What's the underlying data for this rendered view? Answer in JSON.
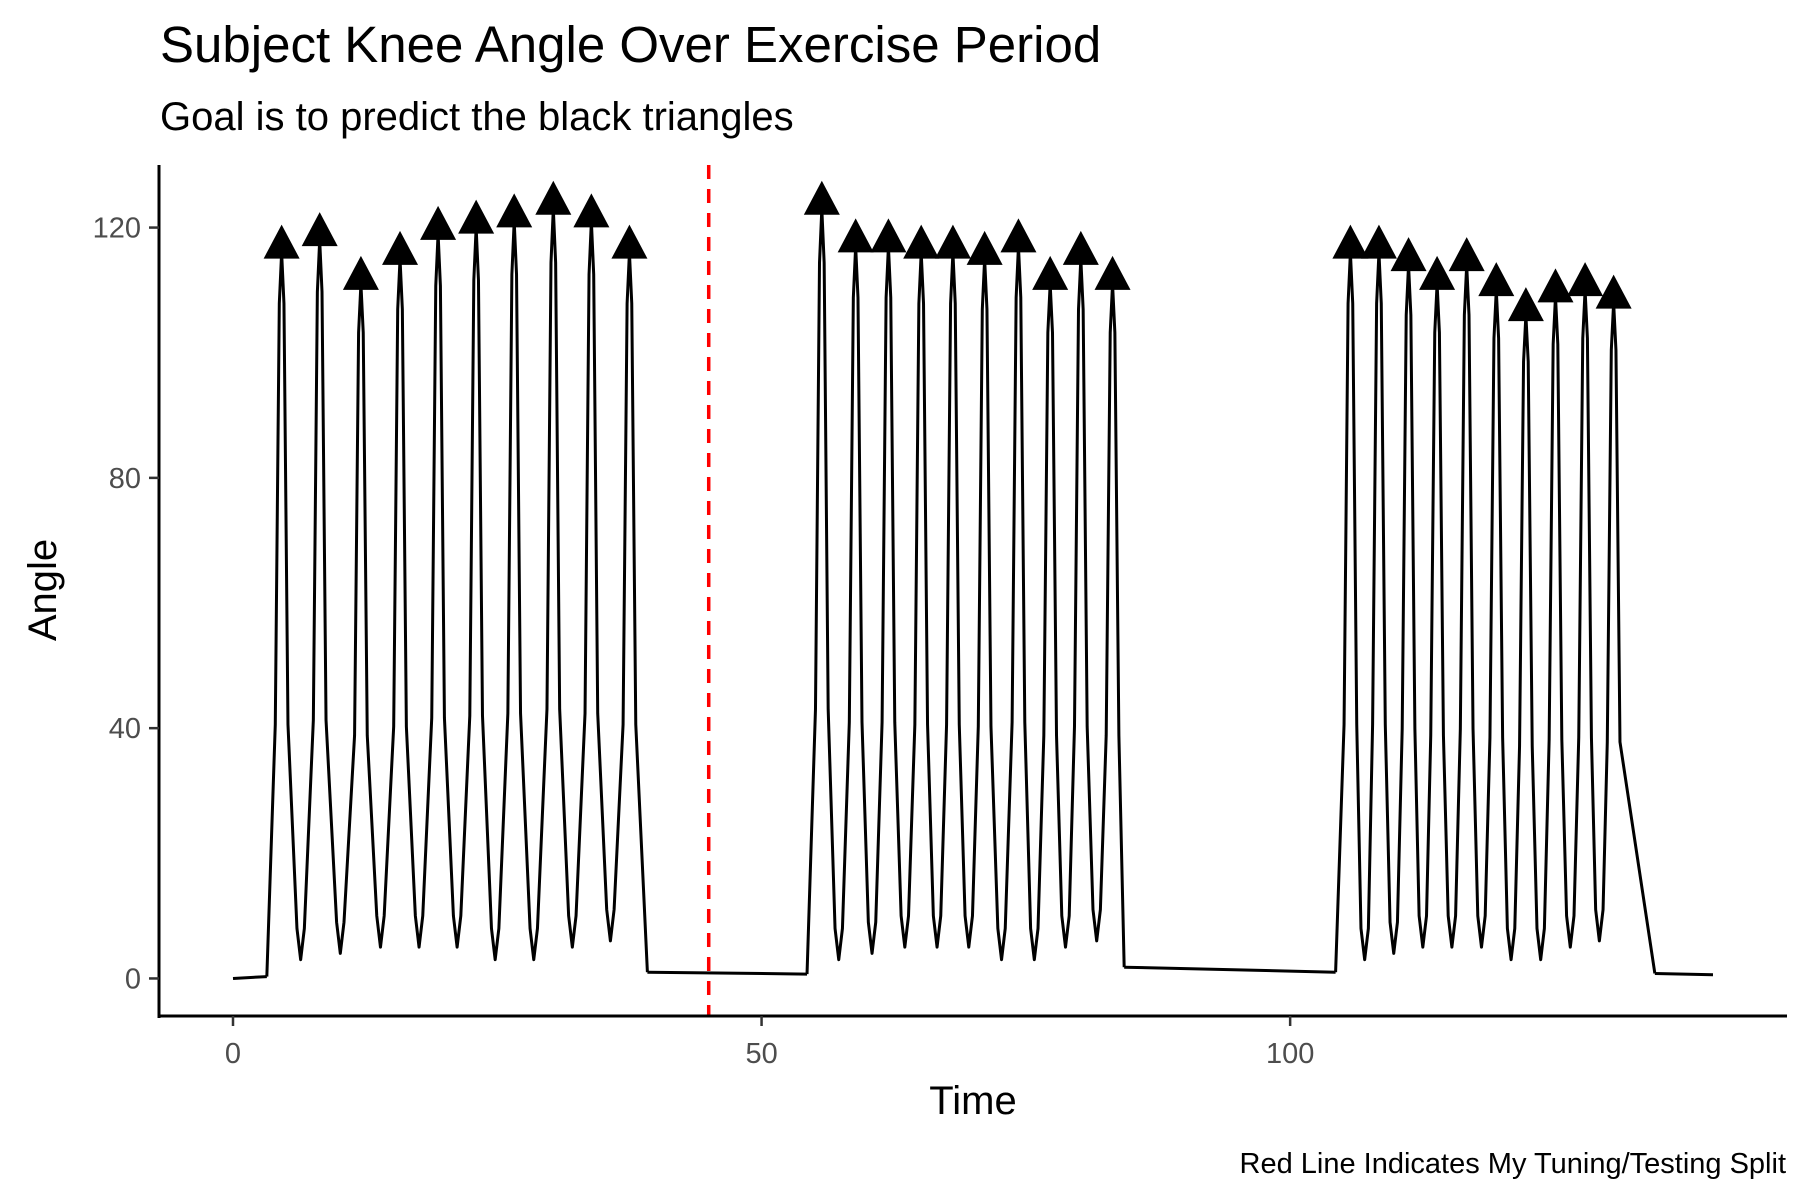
{
  "chart_data": {
    "type": "line",
    "title": "Subject Knee Angle Over Exercise Period",
    "subtitle": "Goal is to predict the black triangles",
    "xlabel": "Time",
    "ylabel": "Angle",
    "caption": "Red Line Indicates My Tuning/Testing Split",
    "xlim": [
      -7,
      147
    ],
    "ylim": [
      -6,
      130
    ],
    "x_ticks": [
      0,
      50,
      100
    ],
    "y_ticks": [
      0,
      40,
      80,
      120
    ],
    "grid": false,
    "legend": "none",
    "split_line": {
      "x": 45,
      "color": "#ff0000",
      "style": "dashed"
    },
    "line_color": "#000000",
    "trough_values": [
      3,
      4,
      5,
      5,
      5,
      3,
      3,
      5,
      6
    ],
    "series": [
      {
        "name": "",
        "rest": [
          {
            "x": [
              0,
              3.2
            ],
            "y": [
              0,
              0.3
            ]
          },
          {
            "x": [
              39.2,
              54.3
            ],
            "y": [
              1.0,
              0.7
            ]
          },
          {
            "x": [
              84.3,
              104.3
            ],
            "y": [
              1.8,
              1.0
            ]
          },
          {
            "x": [
              134.5,
              140
            ],
            "y": [
              0.8,
              0.6
            ]
          }
        ],
        "peaks": {
          "x": [
            4.6,
            8.2,
            12.1,
            15.8,
            19.4,
            23.0,
            26.6,
            30.3,
            33.9,
            37.5,
            55.7,
            58.9,
            62.0,
            65.1,
            68.1,
            71.1,
            74.3,
            77.3,
            80.2,
            83.2,
            105.7,
            108.4,
            111.2,
            113.9,
            116.7,
            119.5,
            122.3,
            125.1,
            127.9,
            130.6
          ],
          "y": [
            116,
            118,
            111,
            115,
            119,
            120,
            121,
            123,
            121,
            116,
            123,
            117,
            117,
            116,
            116,
            115,
            117,
            111,
            115,
            111,
            116,
            116,
            114,
            111,
            114,
            110,
            106,
            109,
            110,
            108
          ]
        }
      }
    ]
  }
}
